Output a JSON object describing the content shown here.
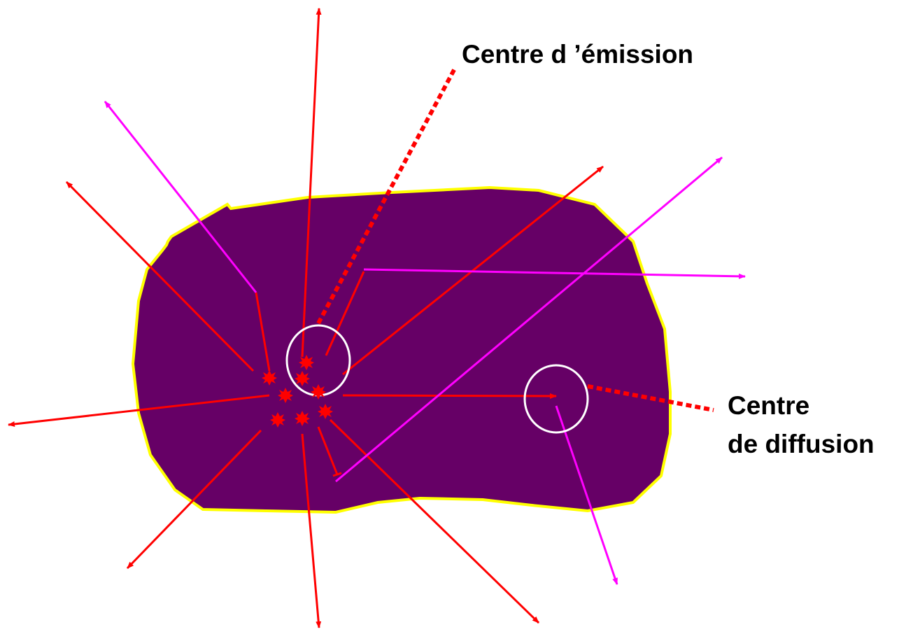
{
  "labels": {
    "emission": "Centre d ’émission",
    "diffusion": [
      "Centre",
      "de diffusion"
    ]
  }
}
